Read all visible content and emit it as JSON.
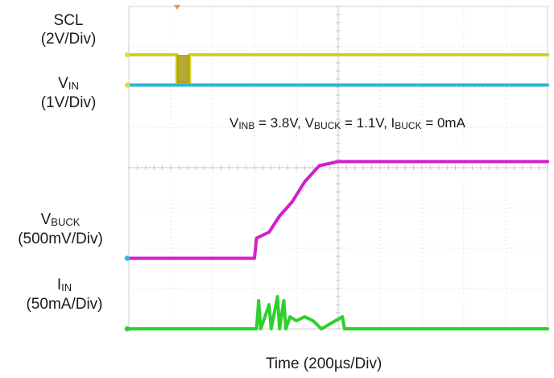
{
  "chart_data": {
    "type": "line",
    "title": "",
    "xlabel": "Time (200µs/Div)",
    "annotation": {
      "parts": [
        {
          "main": "V",
          "sub": "INB",
          "rest": " = 3.8V, "
        },
        {
          "main": "V",
          "sub": "BUCK",
          "rest": " = 1.1V, "
        },
        {
          "main": "I",
          "sub": "BUCK",
          "rest": " = 0mA"
        }
      ]
    },
    "x_divisions": 10,
    "y_divisions": 8,
    "grid": true,
    "channels": [
      {
        "id": "1",
        "name": "SCL",
        "sub": "",
        "scale": "(2V/Div)",
        "color": "#d4cf1e",
        "marker_color": "#e8d84a",
        "points": [
          [
            0,
            1.2
          ],
          [
            1.15,
            1.2
          ],
          [
            1.15,
            1.9
          ],
          [
            1.45,
            1.9
          ],
          [
            1.45,
            1.2
          ],
          [
            10,
            1.2
          ]
        ]
      },
      {
        "id": "1b",
        "name": "V",
        "sub": "IN",
        "scale": "(1V/Div)",
        "color": "#27b9d4",
        "marker_color": "#f0d23c",
        "points": [
          [
            0,
            1.95
          ],
          [
            10,
            1.95
          ]
        ]
      },
      {
        "id": "2",
        "name": "V",
        "sub": "BUCK",
        "scale": "(500mV/Div)",
        "color": "#d31fc9",
        "marker_color": "#2ab8e0",
        "points": [
          [
            0,
            6.25
          ],
          [
            3.0,
            6.25
          ],
          [
            3.05,
            5.75
          ],
          [
            3.35,
            5.6
          ],
          [
            3.6,
            5.2
          ],
          [
            3.9,
            4.85
          ],
          [
            4.2,
            4.35
          ],
          [
            4.55,
            3.95
          ],
          [
            5.0,
            3.85
          ],
          [
            7.5,
            3.85
          ],
          [
            10,
            3.85
          ]
        ]
      },
      {
        "id": "3",
        "name": "I",
        "sub": "IN",
        "scale": "(50mA/Div)",
        "color": "#2fcf2f",
        "marker_color": "#2fcf2f",
        "points": [
          [
            0,
            8.0
          ],
          [
            3.05,
            8.0
          ],
          [
            3.1,
            7.3
          ],
          [
            3.15,
            8.0
          ],
          [
            3.35,
            7.4
          ],
          [
            3.4,
            8.0
          ],
          [
            3.55,
            7.2
          ],
          [
            3.6,
            8.0
          ],
          [
            3.7,
            7.3
          ],
          [
            3.75,
            8.0
          ],
          [
            3.85,
            7.7
          ],
          [
            4.0,
            7.8
          ],
          [
            4.2,
            7.7
          ],
          [
            4.4,
            7.8
          ],
          [
            4.6,
            8.0
          ],
          [
            5.1,
            7.7
          ],
          [
            5.15,
            8.0
          ],
          [
            10,
            8.0
          ]
        ]
      }
    ]
  }
}
